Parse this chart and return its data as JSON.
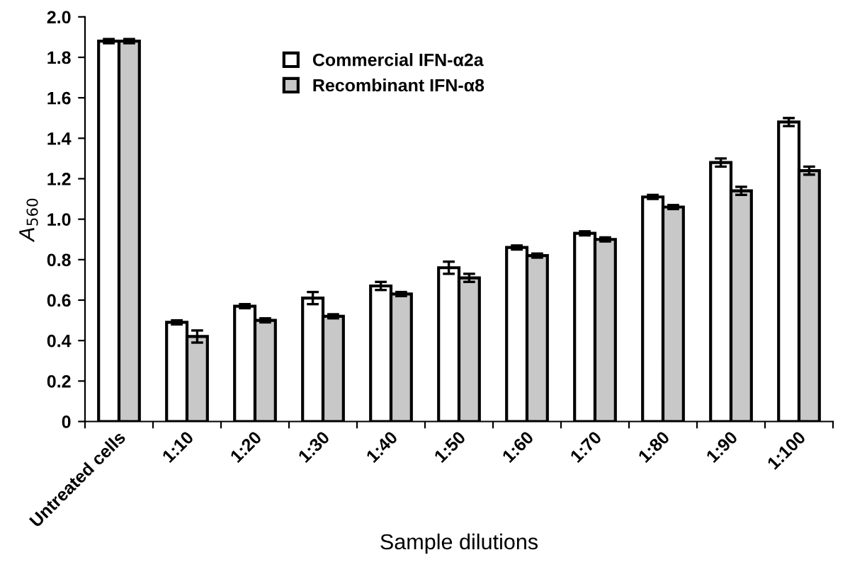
{
  "chart_data": {
    "type": "bar",
    "xlabel": "Sample dilutions",
    "ylabel": "A$_{560}$",
    "categories": [
      "Untreated cells",
      "1:10",
      "1:20",
      "1:30",
      "1:40",
      "1:50",
      "1:60",
      "1:70",
      "1:80",
      "1:90",
      "1:100"
    ],
    "series": [
      {
        "name": "Commercial IFN-α2a",
        "color": "#ffffff",
        "values": [
          1.88,
          0.49,
          0.57,
          0.61,
          0.67,
          0.76,
          0.86,
          0.93,
          1.11,
          1.28,
          1.48
        ],
        "errors": [
          0.01,
          0.01,
          0.01,
          0.03,
          0.02,
          0.03,
          0.01,
          0.01,
          0.01,
          0.02,
          0.02
        ]
      },
      {
        "name": "Recombinant IFN-α8",
        "color": "#c8c8c8",
        "values": [
          1.88,
          0.42,
          0.5,
          0.52,
          0.63,
          0.71,
          0.82,
          0.9,
          1.06,
          1.14,
          1.24
        ],
        "errors": [
          0.01,
          0.03,
          0.01,
          0.01,
          0.01,
          0.02,
          0.01,
          0.01,
          0.01,
          0.02,
          0.02
        ]
      }
    ],
    "ylim": [
      0,
      2.0
    ],
    "yticks": [
      {
        "value": 0,
        "label": "0"
      },
      0.2,
      0.4,
      0.6,
      0.8,
      {
        "value": 1,
        "label": "1.0"
      },
      1.2,
      1.4,
      1.6,
      1.8,
      {
        "value": 2,
        "label": "2.0"
      }
    ],
    "grid": false,
    "legend": "top"
  }
}
